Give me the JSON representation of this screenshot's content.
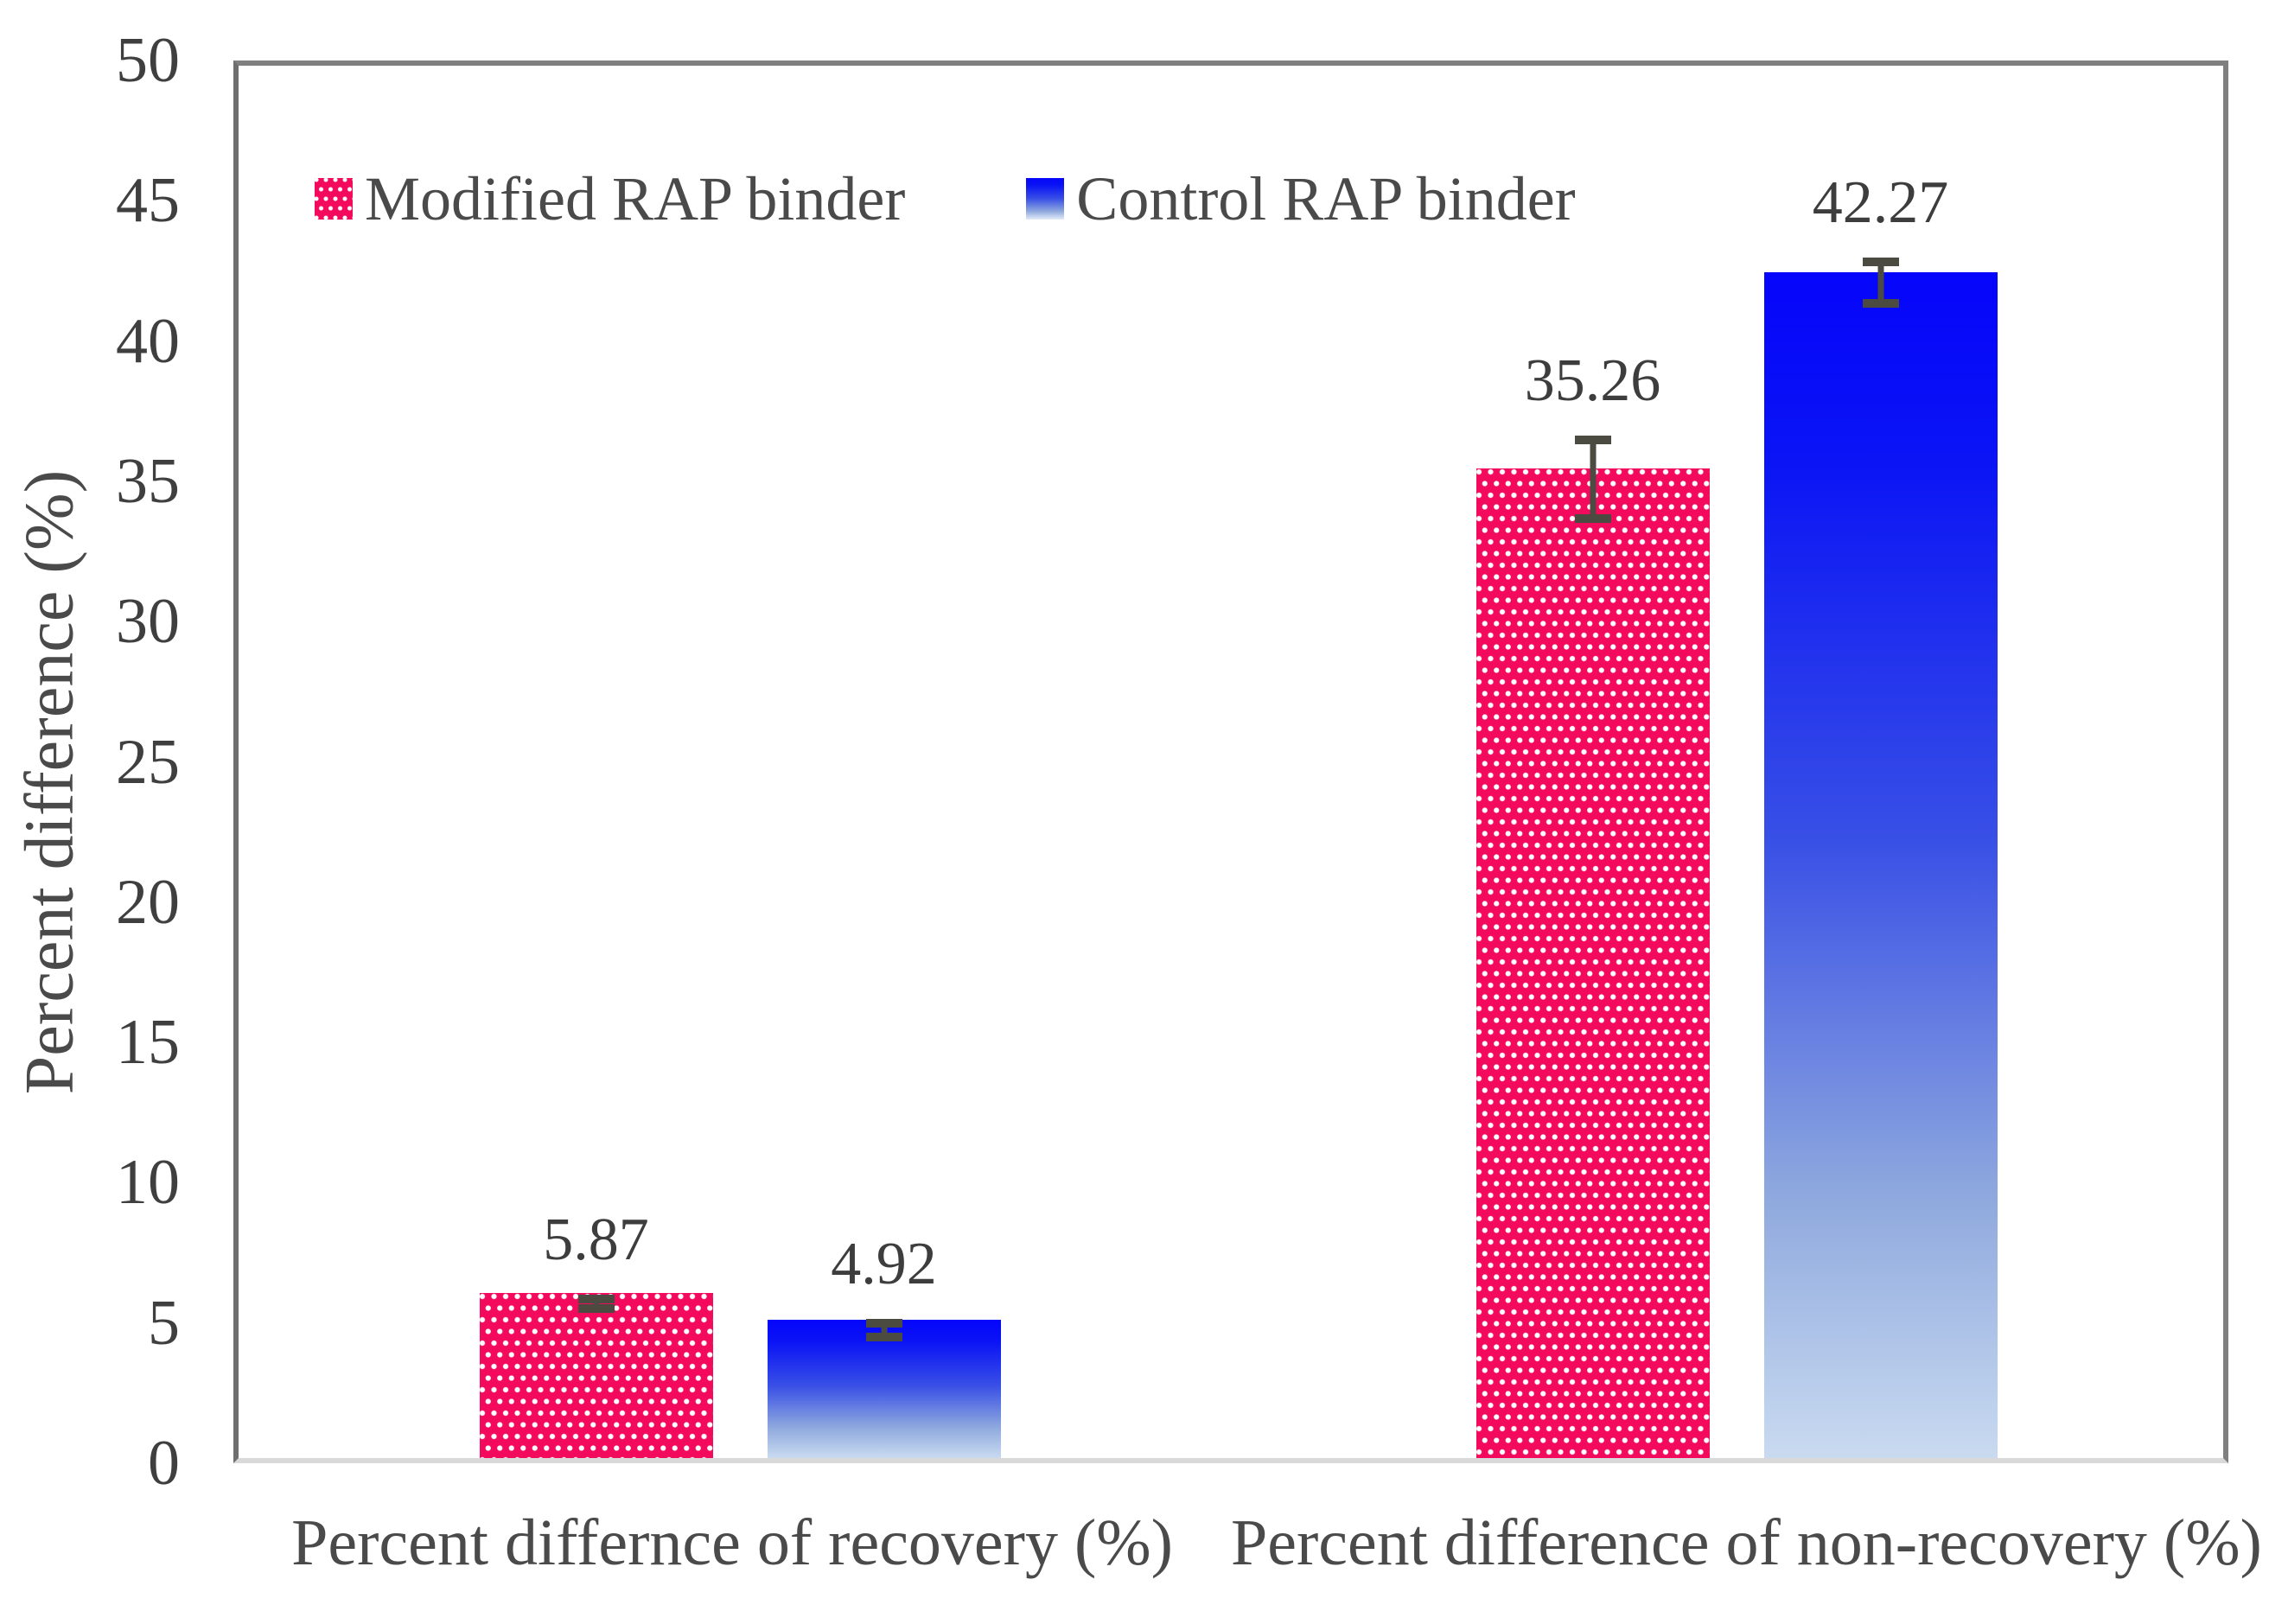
{
  "chart_data": {
    "type": "bar",
    "title": "",
    "xlabel": "",
    "ylabel": "Percent difference (%)",
    "ylim": [
      0,
      50
    ],
    "yticks": [
      0,
      5,
      10,
      15,
      20,
      25,
      30,
      35,
      40,
      45,
      50
    ],
    "grid": false,
    "legend_position": "top-left-inside",
    "categories": [
      "Percent differnce of recovery (%)",
      "Percent difference of non-recovery (%)"
    ],
    "series": [
      {
        "name": "Modified RAP binder",
        "values": [
          5.87,
          35.26
        ],
        "data_labels": [
          "5.87",
          "35.26"
        ],
        "errors": [
          0.32,
          1.55
        ],
        "fill": "pink-with-white-dots",
        "color": "#F30A5C"
      },
      {
        "name": "Control RAP binder",
        "values": [
          4.92,
          42.27
        ],
        "data_labels": [
          "4.92",
          "42.27"
        ],
        "errors": [
          0.4,
          0.9
        ],
        "fill": "blue-vertical-gradient",
        "color_top": "#0505FB",
        "color_bottom": "#C9DAF0"
      }
    ],
    "error_bar_color": "#4b4b42",
    "text_color": "#3d3d3d",
    "axis_frame_color": "#7f7f7f",
    "baseline_color": "#d9d9d9"
  }
}
